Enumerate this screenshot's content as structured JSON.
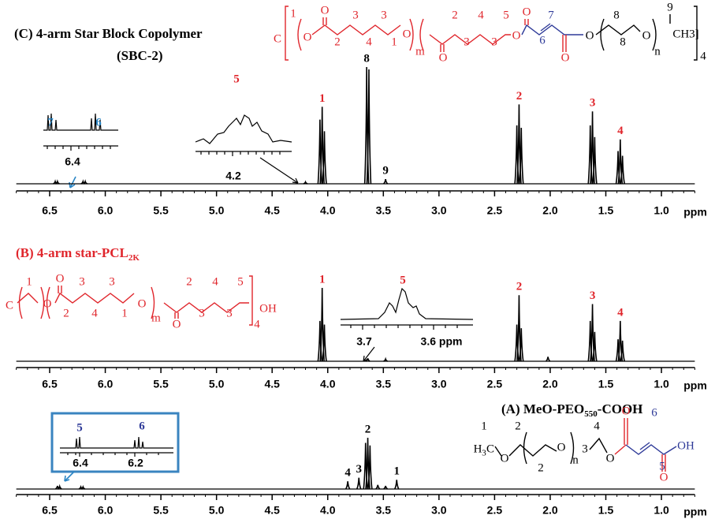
{
  "chart_data": [
    {
      "type": "nmr",
      "title": "(C) 4-arm Star Block Copolymer",
      "subtitle": "(SBC-2)",
      "xlabel": "ppm",
      "color": "#000000",
      "xlim": [
        6.8,
        0.7
      ],
      "xticks": [
        6.5,
        {
          "value": 6,
          "label": "6.0"
        },
        5.5,
        {
          "value": 5,
          "label": "5.0"
        },
        4.5,
        {
          "value": 4,
          "label": "4.0"
        },
        3.5,
        {
          "value": 3,
          "label": "3.0"
        },
        2.5,
        {
          "value": 2,
          "label": "2.0"
        },
        1.5,
        {
          "value": 1,
          "label": "1.0"
        }
      ],
      "x": [
        6.45,
        6.43,
        6.2,
        6.18,
        4.2,
        4.07,
        4.05,
        4.03,
        3.65,
        3.63,
        3.48,
        2.3,
        2.28,
        2.26,
        1.64,
        1.62,
        1.6,
        1.39,
        1.37,
        1.35
      ],
      "values": [
        2,
        2,
        2,
        2,
        1.5,
        55,
        66,
        45,
        100,
        98,
        4,
        50,
        68,
        48,
        50,
        62,
        40,
        28,
        38,
        24
      ],
      "peak_labels": [
        null,
        null,
        null,
        null,
        null,
        null,
        "1",
        null,
        "8",
        null,
        "9",
        null,
        "2",
        null,
        null,
        "3",
        null,
        null,
        "4",
        null
      ],
      "label_colors": [
        null,
        null,
        null,
        null,
        null,
        null,
        "#e0262c",
        null,
        "#000000",
        null,
        "#000000",
        null,
        "#e0262c",
        null,
        null,
        "#e0262c",
        null,
        null,
        "#e0262c",
        null
      ],
      "insets": [
        {
          "labels": [
            "7",
            "6"
          ],
          "ticks": [
            "6.4"
          ]
        },
        {
          "labels": [
            "5"
          ],
          "ticks": [
            "4.2"
          ]
        }
      ],
      "structure": [
        "C",
        "1",
        "O",
        "O",
        "2",
        "3",
        "4",
        "3",
        "1",
        "O",
        "m",
        "2",
        "O",
        "3",
        "4",
        "3",
        "5",
        "O",
        "O",
        "7",
        "6",
        "O",
        "O",
        "8",
        "8",
        "O",
        "n",
        "9",
        "CH3]",
        "4"
      ]
    },
    {
      "type": "nmr",
      "title": "(B) 4-arm star-PCL",
      "title_sub": "2K",
      "xlabel": "ppm",
      "color": "#000000",
      "xlim": [
        6.8,
        0.7
      ],
      "xticks": [
        6.5,
        {
          "value": 6,
          "label": "6.0"
        },
        5.5,
        {
          "value": 5,
          "label": "5.0"
        },
        4.5,
        {
          "value": 4,
          "label": "4.0"
        },
        3.5,
        {
          "value": 3,
          "label": "3.0"
        },
        2.5,
        {
          "value": 2,
          "label": "2.0"
        },
        1.5,
        {
          "value": 1,
          "label": "1.0"
        }
      ],
      "x": [
        4.07,
        4.05,
        4.03,
        3.64,
        3.48,
        2.3,
        2.28,
        2.26,
        2.02,
        1.64,
        1.62,
        1.6,
        1.39,
        1.37,
        1.35
      ],
      "values": [
        55,
        100,
        50,
        4,
        3,
        50,
        90,
        45,
        6,
        55,
        78,
        40,
        30,
        55,
        28
      ],
      "peak_labels": [
        null,
        "1",
        null,
        null,
        null,
        null,
        "2",
        null,
        null,
        null,
        "3",
        null,
        null,
        "4",
        null
      ],
      "label_colors": [
        null,
        "#e0262c",
        null,
        null,
        null,
        null,
        "#e0262c",
        null,
        null,
        null,
        "#e0262c",
        null,
        null,
        "#e0262c",
        null
      ],
      "insets": [
        {
          "labels": [
            "5"
          ],
          "ticks": [
            "3.7",
            "3.6 ppm"
          ]
        }
      ],
      "structure": [
        "C",
        "1",
        "O",
        "O",
        "2",
        "3",
        "4",
        "3",
        "1",
        "O",
        "m",
        "O",
        "2",
        "3",
        "4",
        "3",
        "5",
        "4",
        "OH"
      ]
    },
    {
      "type": "nmr",
      "title": "(A) MeO-PEO",
      "title_sub": "550",
      "title_end": "-COOH",
      "xlabel": "ppm",
      "color": "#000000",
      "xlim": [
        6.8,
        0.7
      ],
      "xticks": [
        6.5,
        {
          "value": 6,
          "label": "6.0"
        },
        5.5,
        {
          "value": 5,
          "label": "5.0"
        },
        4.5,
        {
          "value": 4,
          "label": "4.0"
        },
        3.5,
        {
          "value": 3,
          "label": "3.0"
        },
        2.5,
        {
          "value": 2,
          "label": "2.0"
        },
        1.5,
        {
          "value": 1,
          "label": "1.0"
        }
      ],
      "x": [
        6.43,
        6.41,
        6.22,
        6.2,
        3.82,
        3.72,
        3.66,
        3.64,
        3.62,
        3.55,
        3.48,
        3.38
      ],
      "values": [
        6,
        5,
        4,
        4,
        15,
        22,
        90,
        100,
        85,
        8,
        6,
        18
      ],
      "peak_labels": [
        null,
        null,
        null,
        null,
        "4",
        "3",
        null,
        "2",
        null,
        null,
        null,
        "1"
      ],
      "label_colors": [
        null,
        null,
        null,
        null,
        "#000000",
        "#000000",
        null,
        "#000000",
        null,
        null,
        null,
        "#000000"
      ],
      "insets": [
        {
          "labels": [
            "5",
            "6"
          ],
          "ticks": [
            "6.4",
            "6.2"
          ]
        }
      ],
      "structure": [
        "1",
        "H",
        "3",
        "C",
        "O",
        "2",
        "2",
        "O",
        "n",
        "3",
        "4",
        "O",
        "O",
        "6",
        "5",
        "OH",
        "O"
      ]
    }
  ]
}
